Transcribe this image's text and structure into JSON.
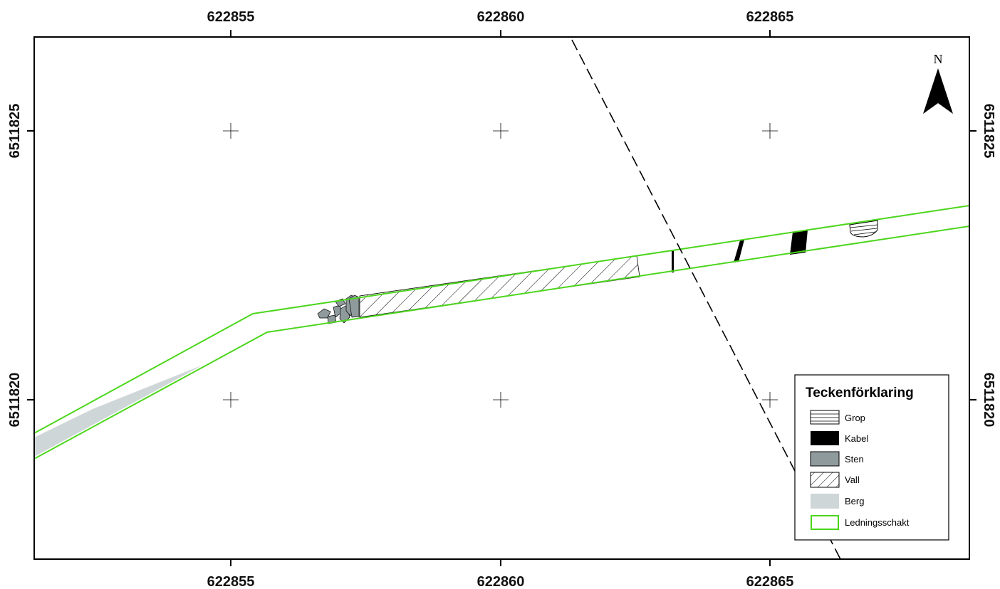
{
  "map": {
    "x_ticks": [
      "622855",
      "622860",
      "622865"
    ],
    "y_ticks": [
      "6511825",
      "6511820"
    ],
    "north_label": "N"
  },
  "legend": {
    "title": "Teckenförklaring",
    "items": [
      {
        "label": "Grop",
        "symbol": "grop"
      },
      {
        "label": "Kabel",
        "symbol": "kabel"
      },
      {
        "label": "Sten",
        "symbol": "sten"
      },
      {
        "label": "Vall",
        "symbol": "vall"
      },
      {
        "label": "Berg",
        "symbol": "berg"
      },
      {
        "label": "Ledningsschakt",
        "symbol": "ledningsschakt"
      }
    ]
  },
  "colors": {
    "ledningsschakt": "#4cd61c",
    "berg": "#cfd6d7",
    "sten": "#8f9a9c",
    "kabel": "#000000",
    "frame": "#000000"
  }
}
